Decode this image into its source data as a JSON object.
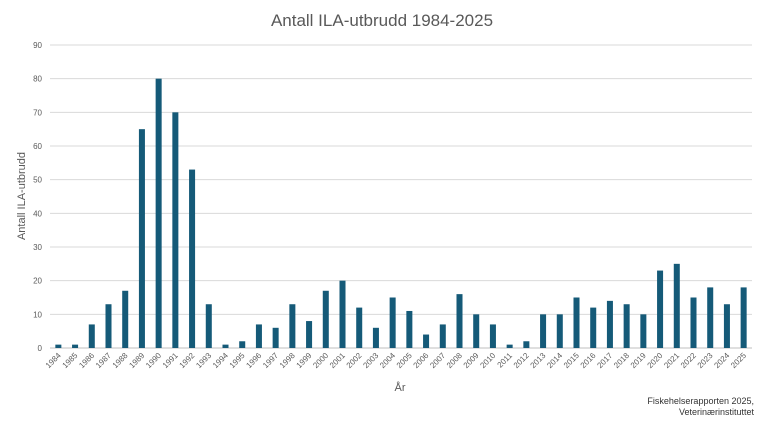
{
  "chart_data": {
    "type": "bar",
    "title": "Antall ILA-utbrudd 1984-2025",
    "xlabel": "År",
    "ylabel": "Antall ILA-utbrudd",
    "ylim": [
      0,
      90
    ],
    "yticks": [
      0,
      10,
      20,
      30,
      40,
      50,
      60,
      70,
      80,
      90
    ],
    "grid": true,
    "legend": "none",
    "bar_color": "#155a78",
    "categories": [
      "1984",
      "1985",
      "1986",
      "1987",
      "1988",
      "1989",
      "1990",
      "1991",
      "1992",
      "1993",
      "1994",
      "1995",
      "1996",
      "1997",
      "1998",
      "1999",
      "2000",
      "2001",
      "2002",
      "2003",
      "2004",
      "2005",
      "2006",
      "2007",
      "2008",
      "2009",
      "2010",
      "2011",
      "2012",
      "2013",
      "2014",
      "2015",
      "2016",
      "2017",
      "2018",
      "2019",
      "2020",
      "2021",
      "2022",
      "2023",
      "2024",
      "2025"
    ],
    "values": [
      1,
      1,
      7,
      13,
      17,
      65,
      80,
      70,
      53,
      13,
      1,
      2,
      7,
      6,
      13,
      8,
      17,
      20,
      12,
      6,
      15,
      11,
      4,
      7,
      16,
      10,
      7,
      1,
      2,
      10,
      10,
      15,
      12,
      14,
      13,
      10,
      23,
      25,
      15,
      18,
      13,
      18
    ]
  },
  "source": {
    "line1": "Fiskehelserapporten 2025,",
    "line2": "Veterinærinstituttet"
  }
}
